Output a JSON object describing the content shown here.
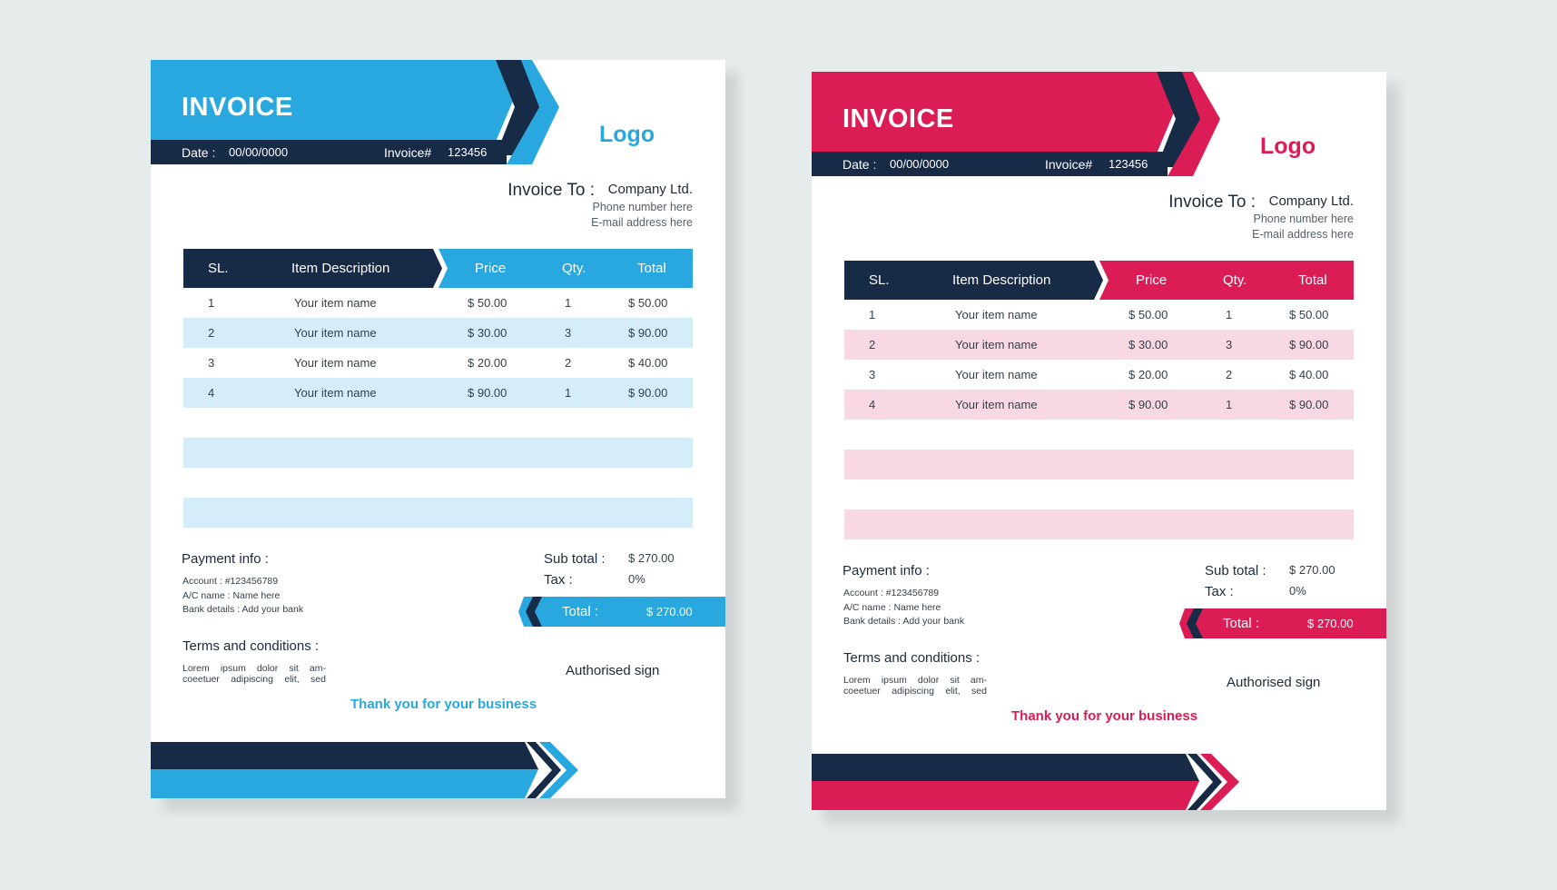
{
  "invoices": [
    {
      "theme": {
        "accent": "#29a8e0",
        "navy": "#172a46",
        "band": "#d4edf8"
      },
      "header": {
        "title": "INVOICE",
        "date_label": "Date :",
        "date_value": "00/00/0000",
        "invoice_label": "Invoice#",
        "invoice_value": "123456"
      },
      "logo": "Logo",
      "invoice_to": {
        "label": "Invoice To :",
        "company": "Company Ltd.",
        "phone": "Phone number here",
        "email": "E-mail address here"
      },
      "table": {
        "columns": [
          "SL.",
          "Item Description",
          "Price",
          "Qty.",
          "Total"
        ],
        "rows": [
          [
            "1",
            "Your item name",
            "$ 50.00",
            "1",
            "$ 50.00"
          ],
          [
            "2",
            "Your item name",
            "$ 30.00",
            "3",
            "$ 90.00"
          ],
          [
            "3",
            "Your item name",
            "$ 20.00",
            "2",
            "$ 40.00"
          ],
          [
            "4",
            "Your item name",
            "$ 90.00",
            "1",
            "$ 90.00"
          ]
        ]
      },
      "payment": {
        "title": "Payment info :",
        "account": "Account :  #123456789",
        "ac_name": "A/C name :  Name here",
        "bank": "Bank details :  Add your bank"
      },
      "summary": {
        "subtotal_label": "Sub total :",
        "subtotal_value": "$ 270.00",
        "tax_label": "Tax :",
        "tax_value": "0%",
        "total_label": "Total :",
        "total_value": "$ 270.00"
      },
      "terms": {
        "title": "Terms and conditions :",
        "body": "Lorem ipsum dolor sit am- coeetuer adipiscing elit, sed"
      },
      "sign": "Authorised sign",
      "thanks": "Thank you for your business"
    },
    {
      "theme": {
        "accent": "#dc1c55",
        "navy": "#172a46",
        "band": "#f8d9e3"
      },
      "header": {
        "title": "INVOICE",
        "date_label": "Date :",
        "date_value": "00/00/0000",
        "invoice_label": "Invoice#",
        "invoice_value": "123456"
      },
      "logo": "Logo",
      "invoice_to": {
        "label": "Invoice To :",
        "company": "Company Ltd.",
        "phone": "Phone number here",
        "email": "E-mail address here"
      },
      "table": {
        "columns": [
          "SL.",
          "Item Description",
          "Price",
          "Qty.",
          "Total"
        ],
        "rows": [
          [
            "1",
            "Your item name",
            "$ 50.00",
            "1",
            "$ 50.00"
          ],
          [
            "2",
            "Your item name",
            "$ 30.00",
            "3",
            "$ 90.00"
          ],
          [
            "3",
            "Your item name",
            "$ 20.00",
            "2",
            "$ 40.00"
          ],
          [
            "4",
            "Your item name",
            "$ 90.00",
            "1",
            "$ 90.00"
          ]
        ]
      },
      "payment": {
        "title": "Payment info :",
        "account": "Account :  #123456789",
        "ac_name": "A/C name :  Name here",
        "bank": "Bank details :  Add your bank"
      },
      "summary": {
        "subtotal_label": "Sub total :",
        "subtotal_value": "$ 270.00",
        "tax_label": "Tax :",
        "tax_value": "0%",
        "total_label": "Total :",
        "total_value": "$ 270.00"
      },
      "terms": {
        "title": "Terms and conditions :",
        "body": "Lorem ipsum dolor sit am- coeetuer adipiscing elit, sed"
      },
      "sign": "Authorised sign",
      "thanks": "Thank you for your business"
    }
  ]
}
